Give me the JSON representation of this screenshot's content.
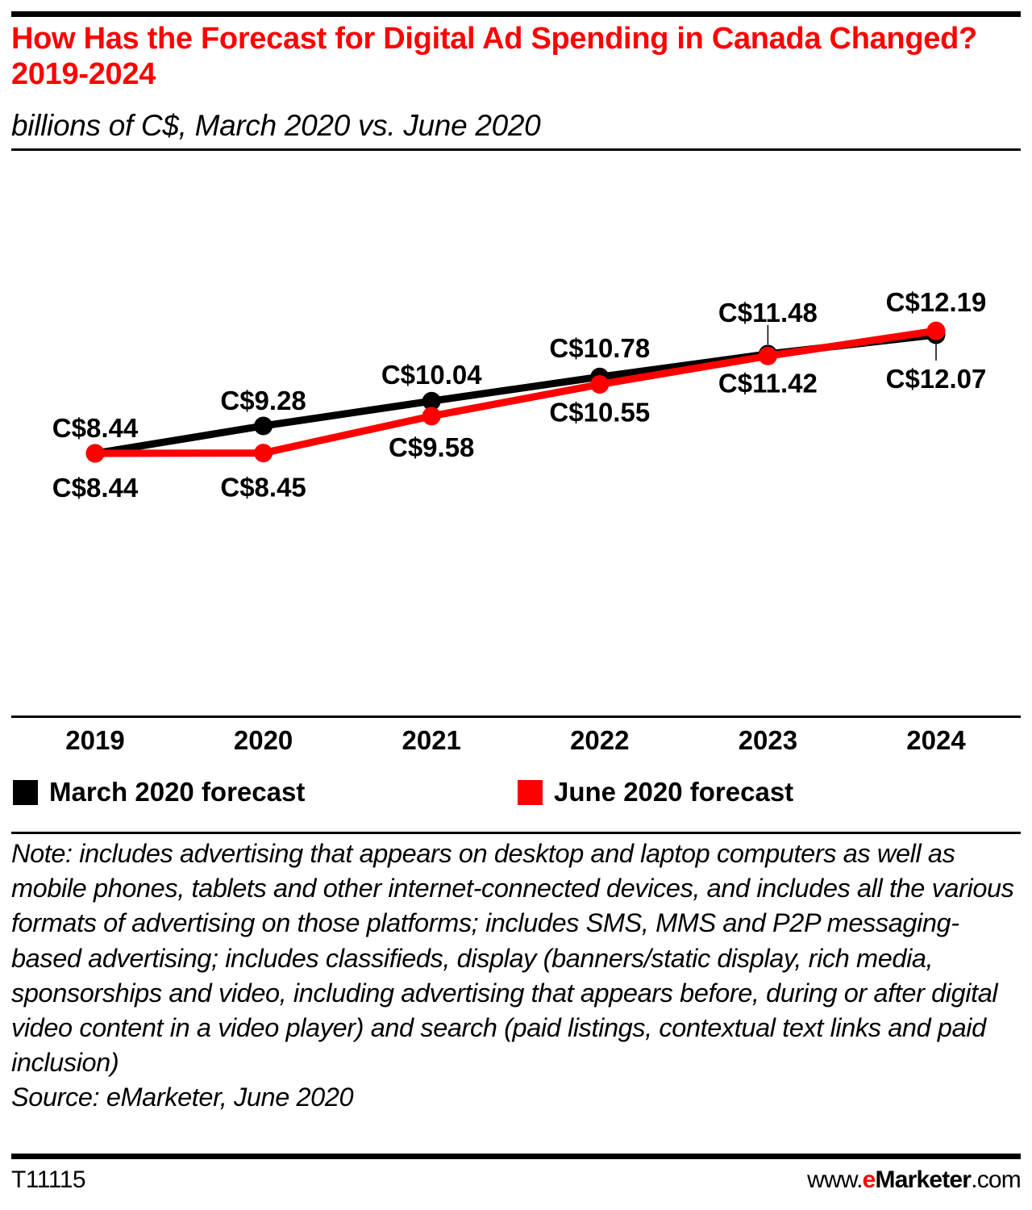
{
  "header": {
    "title": "How Has the Forecast for Digital Ad Spending in Canada Changed? 2019-2024",
    "subtitle": "billions of C$, March 2020 vs. June 2020"
  },
  "colors": {
    "title": "#ff0000",
    "march_series": "#000000",
    "june_series": "#ff0000"
  },
  "chart_data": {
    "type": "line",
    "title": "How Has the Forecast for Digital Ad Spending in Canada Changed? 2019-2024",
    "subtitle": "billions of C$, March 2020 vs. June 2020",
    "xlabel": "",
    "ylabel": "billions of C$",
    "x": [
      "2019",
      "2020",
      "2021",
      "2022",
      "2023",
      "2024"
    ],
    "series": [
      {
        "name": "March 2020 forecast",
        "color": "#000000",
        "values": [
          8.44,
          9.28,
          10.04,
          10.78,
          11.48,
          12.07
        ],
        "labels": [
          "C$8.44",
          "C$9.28",
          "C$10.04",
          "C$10.78",
          "C$11.48",
          "C$12.07"
        ],
        "label_positions": [
          "above",
          "above",
          "above",
          "above",
          "above",
          "below"
        ]
      },
      {
        "name": "June 2020 forecast",
        "color": "#ff0000",
        "values": [
          8.44,
          8.45,
          9.58,
          10.55,
          11.42,
          12.19
        ],
        "labels": [
          "C$8.44",
          "C$8.45",
          "C$9.58",
          "C$10.55",
          "C$11.42",
          "C$12.19"
        ],
        "label_positions": [
          "below",
          "below",
          "below",
          "below",
          "below",
          "above"
        ]
      }
    ],
    "ylim": [
      6.0,
      14.5
    ],
    "grid": false,
    "y_axis_visible": false,
    "legend": "bottom"
  },
  "legend": {
    "items": [
      {
        "label": "March 2020 forecast",
        "color": "#000000"
      },
      {
        "label": "June 2020 forecast",
        "color": "#ff0000"
      }
    ]
  },
  "notes": {
    "note": "Note: includes advertising that appears on desktop and laptop computers as well as mobile phones, tablets and other internet-connected devices, and includes all the various formats of advertising on those platforms; includes SMS, MMS and P2P messaging-based advertising; includes classifieds, display (banners/static display, rich media, sponsorships and video, including advertising that appears before, during or after digital video content in a video player) and search (paid listings, contextual text links and paid inclusion)",
    "source": "Source: eMarketer, June 2020"
  },
  "footer": {
    "chart_id": "T11115",
    "brand_prefix": "www.",
    "brand_e": "e",
    "brand_name": "Marketer",
    "brand_suffix": ".com"
  }
}
